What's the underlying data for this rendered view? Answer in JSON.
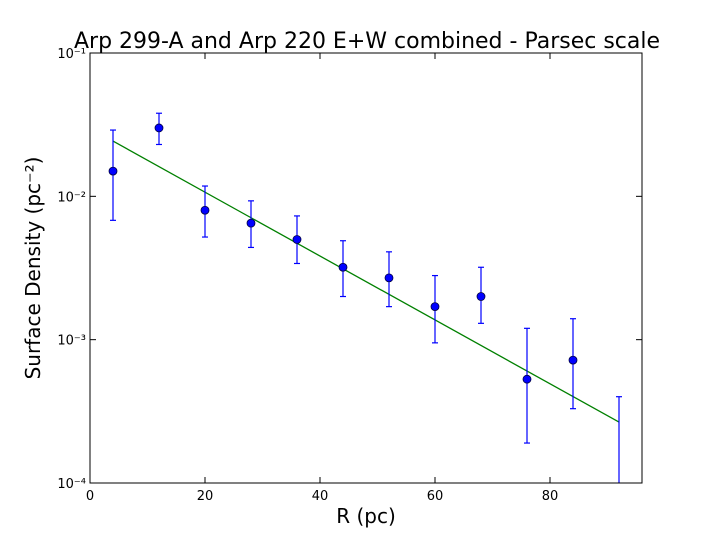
{
  "chart_data": {
    "type": "errorbar",
    "title": "Arp 299-A and Arp 220 E+W combined - Parsec scale",
    "xlabel": "R (pc)",
    "ylabel": "Surface Density (pc⁻²)",
    "xlim": [
      0,
      96
    ],
    "xticks": [
      0,
      20,
      40,
      60,
      80
    ],
    "ylim": [
      0.0001,
      0.1
    ],
    "log_y": true,
    "yticks": [
      {
        "value": 0.0001,
        "label": "10⁻⁴"
      },
      {
        "value": 0.001,
        "label": "10⁻³"
      },
      {
        "value": 0.01,
        "label": "10⁻²"
      },
      {
        "value": 0.1,
        "label": "10⁻¹"
      }
    ],
    "points": {
      "color": "#0000ff",
      "x": [
        4,
        12,
        20,
        28,
        36,
        44,
        52,
        60,
        68,
        76,
        84,
        92
      ],
      "values": [
        0.015,
        0.03,
        0.008,
        0.0065,
        0.005,
        0.0032,
        0.0027,
        0.0017,
        0.002,
        0.00053,
        0.00072,
        null
      ],
      "upper": [
        0.029,
        0.038,
        0.0118,
        0.0093,
        0.0073,
        0.0049,
        0.0041,
        0.0028,
        0.0032,
        0.0012,
        0.0014,
        0.0004
      ],
      "lower": [
        0.0068,
        0.023,
        0.0052,
        0.0044,
        0.0034,
        0.002,
        0.0017,
        0.00095,
        0.0013,
        0.00019,
        0.00033,
        null
      ]
    },
    "fit": {
      "color": "#008000",
      "x": [
        4,
        92
      ],
      "values": [
        0.0243,
        0.000266
      ]
    }
  }
}
